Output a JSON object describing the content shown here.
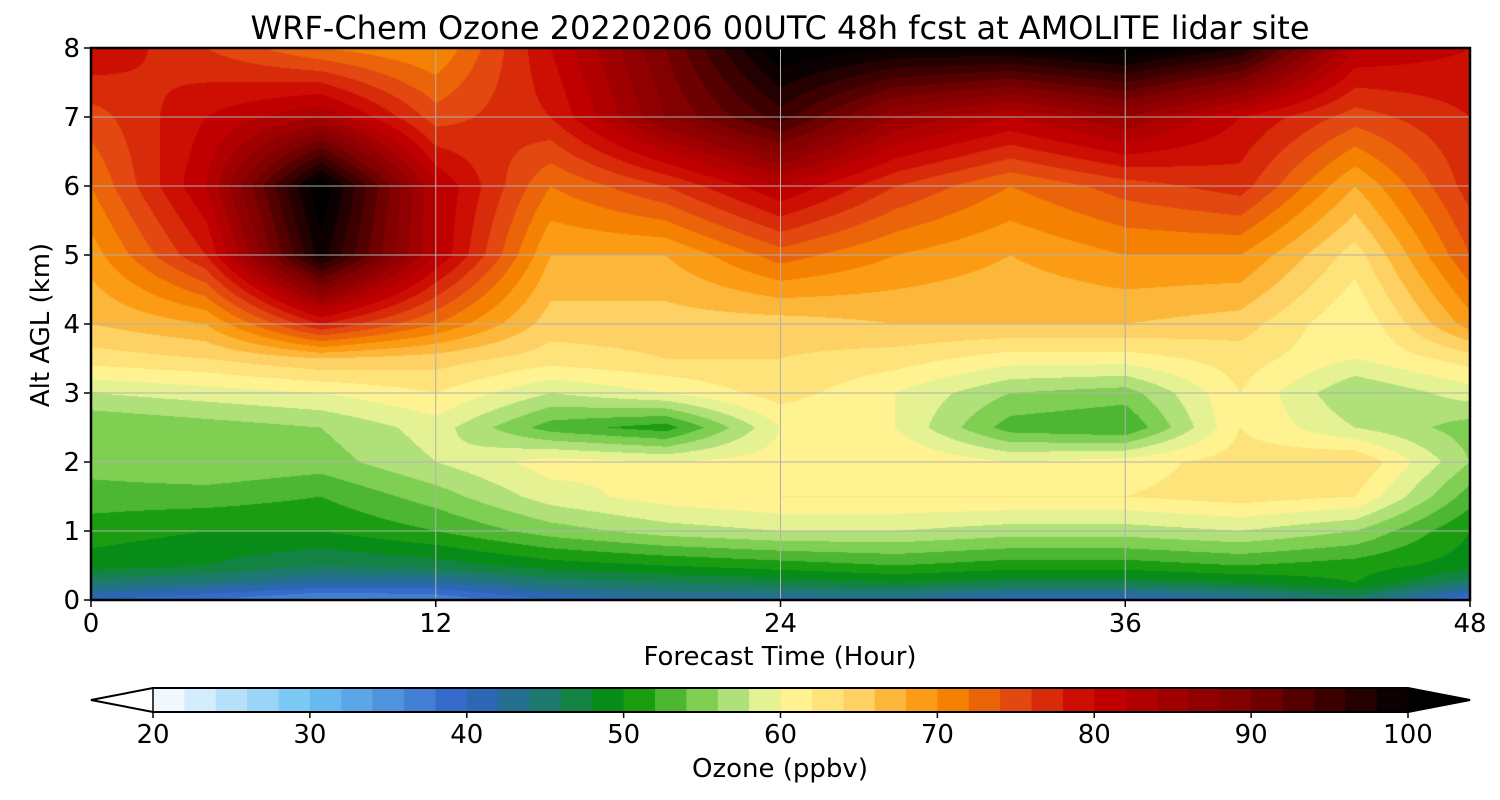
{
  "chart_data": {
    "type": "heatmap",
    "title": "WRF-Chem Ozone  20220206 00UTC 48h fcst at AMOLITE lidar site",
    "xlabel": "Forecast Time (Hour)",
    "ylabel": "Alt AGL (km)",
    "xlim": [
      0,
      48
    ],
    "ylim": [
      0,
      8
    ],
    "xticks": [
      0,
      12,
      24,
      36,
      48
    ],
    "yticks": [
      0,
      1,
      2,
      3,
      4,
      5,
      6,
      7,
      8
    ],
    "grid": true,
    "x": [
      0,
      4,
      8,
      12,
      16,
      20,
      24,
      28,
      32,
      36,
      40,
      44,
      48
    ],
    "y": [
      0,
      0.25,
      0.5,
      1,
      1.5,
      2,
      2.5,
      3,
      3.5,
      4,
      5,
      6,
      7,
      8
    ],
    "z": [
      [
        40,
        38,
        35,
        36,
        40,
        42,
        42,
        42,
        40,
        40,
        42,
        45,
        38
      ],
      [
        45,
        44,
        42,
        42,
        45,
        46,
        47,
        48,
        47,
        47,
        48,
        50,
        45
      ],
      [
        49,
        48,
        46,
        47,
        49,
        50,
        51,
        52,
        51,
        51,
        52,
        51,
        49
      ],
      [
        51,
        50,
        50,
        52,
        55,
        57,
        58,
        58,
        57,
        57,
        58,
        56,
        50
      ],
      [
        53,
        53,
        52,
        55,
        59,
        61,
        62,
        62,
        62,
        62,
        63,
        62,
        53
      ],
      [
        55,
        56,
        55,
        58,
        61,
        60,
        61,
        62,
        60,
        61,
        63,
        64,
        56
      ],
      [
        54,
        55,
        56,
        59,
        53,
        51,
        60,
        60,
        53,
        52,
        62,
        58,
        55
      ],
      [
        58,
        59,
        60,
        62,
        58,
        60,
        63,
        60,
        56,
        55,
        62,
        56,
        59
      ],
      [
        63,
        64,
        66,
        65,
        63,
        64,
        64,
        63,
        61,
        61,
        63,
        60,
        63
      ],
      [
        66,
        68,
        78,
        72,
        65,
        65,
        65,
        66,
        66,
        66,
        65,
        60,
        69
      ],
      [
        69,
        78,
        99,
        82,
        68,
        68,
        73,
        70,
        68,
        70,
        70,
        63,
        74
      ],
      [
        72,
        82,
        102,
        82,
        72,
        76,
        82,
        76,
        72,
        75,
        77,
        68,
        77
      ],
      [
        75,
        80,
        84,
        75,
        78,
        88,
        95,
        86,
        82,
        86,
        80,
        75,
        78
      ],
      [
        80,
        76,
        72,
        70,
        80,
        90,
        102,
        100,
        100,
        102,
        98,
        82,
        80
      ]
    ],
    "colorbar": {
      "label": "Ozone  (ppbv)",
      "min": 20,
      "max": 100,
      "ticks": [
        20,
        30,
        40,
        50,
        60,
        70,
        80,
        90,
        100
      ],
      "extend": "both"
    },
    "colormap": [
      [
        20,
        "#ffffff"
      ],
      [
        30,
        "#6ec3f5"
      ],
      [
        40,
        "#2f62c6"
      ],
      [
        45,
        "#1e7a6e"
      ],
      [
        50,
        "#029002"
      ],
      [
        55,
        "#7fcf53"
      ],
      [
        58,
        "#c8e98c"
      ],
      [
        60,
        "#fffb9c"
      ],
      [
        65,
        "#fdd163"
      ],
      [
        70,
        "#fa8f00"
      ],
      [
        75,
        "#e2480f"
      ],
      [
        80,
        "#c80000"
      ],
      [
        90,
        "#7a0000"
      ],
      [
        100,
        "#000000"
      ]
    ],
    "grid_color": "#b0b0b0"
  }
}
